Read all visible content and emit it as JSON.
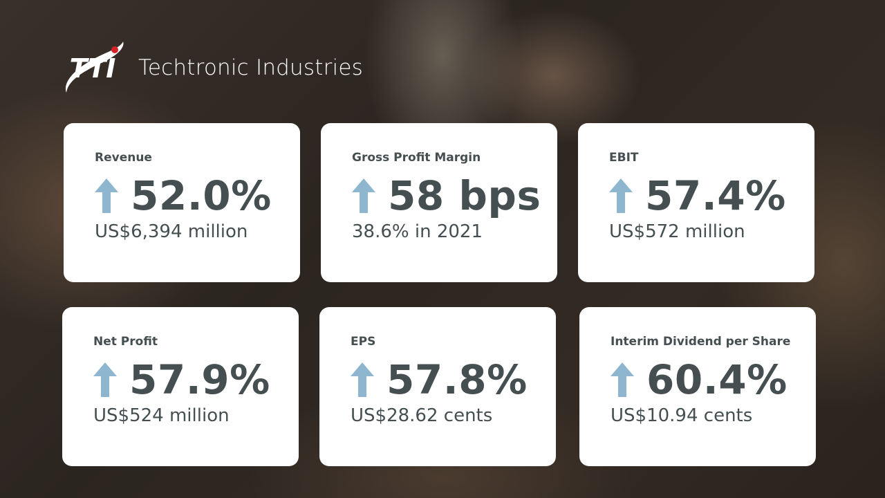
{
  "brand": {
    "logo": "TTI",
    "name": "Techtronic Industries"
  },
  "cards": [
    {
      "label": "Revenue",
      "change": "52.0%",
      "detail": "US$6,394 million"
    },
    {
      "label": "Gross Profit Margin",
      "change": "58 bps",
      "detail": "38.6% in 2021"
    },
    {
      "label": "EBIT",
      "change": "57.4%",
      "detail": "US$572 million"
    },
    {
      "label": "Net Profit",
      "change": "57.9%",
      "detail": "US$524 million"
    },
    {
      "label": "EPS",
      "change": "57.8%",
      "detail": "US$28.62 cents"
    },
    {
      "label": "Interim Dividend per Share",
      "change": "60.4%",
      "detail": "US$10.94 cents"
    }
  ]
}
